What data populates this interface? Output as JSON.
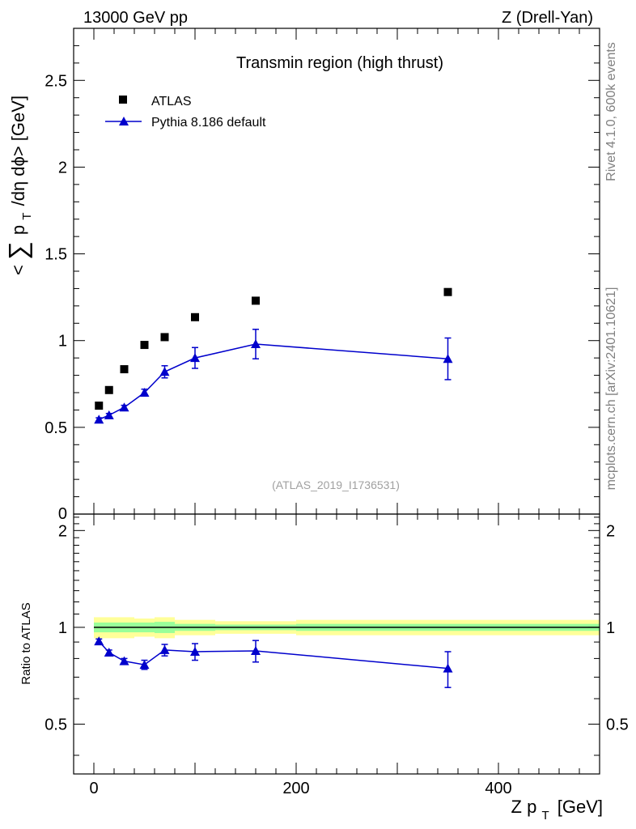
{
  "header": {
    "left": "13000 GeV pp",
    "right": "Z (Drell-Yan)"
  },
  "side": {
    "rivet": "Rivet 4.1.0,  600k events",
    "mcplots": "mcplots.cern.ch [arXiv:2401.10621]"
  },
  "chart_data": {
    "type": "scatter",
    "title": "Transmin region (high thrust)",
    "analysis_tag": "(ATLAS_2019_I1736531)",
    "ylabel_parts": {
      "open": "<",
      "sum": "∑",
      "p": "p",
      "sub": "T",
      "rest": "/dη dϕ> [GeV]"
    },
    "xlabel_parts": {
      "main": "Z p",
      "sub": "T",
      "unit": "[GeV]"
    },
    "xlim": [
      -20,
      500
    ],
    "ylim": [
      0,
      2.8
    ],
    "x_ticks": [
      "0",
      "200",
      "400"
    ],
    "y_ticks": [
      "0.5",
      "1",
      "1.5",
      "2",
      "2.5"
    ],
    "y_tick_bottom": "0",
    "legend": {
      "data_label": "ATLAS",
      "mc_label": "Pythia 8.186 default",
      "position": "top-left"
    },
    "series": [
      {
        "name": "ATLAS",
        "marker": "square",
        "color": "#000000",
        "points": [
          {
            "x": 5,
            "y": 0.625
          },
          {
            "x": 15,
            "y": 0.715
          },
          {
            "x": 30,
            "y": 0.835
          },
          {
            "x": 50,
            "y": 0.975
          },
          {
            "x": 70,
            "y": 1.02
          },
          {
            "x": 100,
            "y": 1.135
          },
          {
            "x": 160,
            "y": 1.23
          },
          {
            "x": 350,
            "y": 1.28
          }
        ]
      },
      {
        "name": "Pythia 8.186 default",
        "marker": "triangle",
        "color": "#0000cc",
        "points": [
          {
            "x": 5,
            "y": 0.545,
            "err": 0.01
          },
          {
            "x": 15,
            "y": 0.57,
            "err": 0.01
          },
          {
            "x": 30,
            "y": 0.615,
            "err": 0.012
          },
          {
            "x": 50,
            "y": 0.7,
            "err": 0.02
          },
          {
            "x": 70,
            "y": 0.82,
            "err": 0.035
          },
          {
            "x": 100,
            "y": 0.9,
            "err": 0.06
          },
          {
            "x": 160,
            "y": 0.98,
            "err": 0.085
          },
          {
            "x": 350,
            "y": 0.895,
            "err": 0.12
          }
        ]
      }
    ],
    "ratio": {
      "ylabel": "Ratio to ATLAS",
      "ylim": [
        0.35,
        2.25
      ],
      "y_ticks": [
        "0.5",
        "1",
        "2"
      ],
      "bands": [
        {
          "x1": 0,
          "x2": 40,
          "stat": 0.035,
          "total": 0.075
        },
        {
          "x1": 40,
          "x2": 60,
          "stat": 0.035,
          "total": 0.065
        },
        {
          "x1": 60,
          "x2": 80,
          "stat": 0.04,
          "total": 0.075
        },
        {
          "x1": 80,
          "x2": 120,
          "stat": 0.025,
          "total": 0.055
        },
        {
          "x1": 120,
          "x2": 200,
          "stat": 0.02,
          "total": 0.045
        },
        {
          "x1": 200,
          "x2": 500,
          "stat": 0.025,
          "total": 0.055
        }
      ],
      "points": [
        {
          "x": 5,
          "y": 0.905,
          "err": 0.015
        },
        {
          "x": 15,
          "y": 0.835,
          "err": 0.015
        },
        {
          "x": 30,
          "y": 0.785,
          "err": 0.015
        },
        {
          "x": 50,
          "y": 0.765,
          "err": 0.025
        },
        {
          "x": 70,
          "y": 0.85,
          "err": 0.035
        },
        {
          "x": 100,
          "y": 0.84,
          "err": 0.05
        },
        {
          "x": 160,
          "y": 0.845,
          "err": 0.065
        },
        {
          "x": 350,
          "y": 0.745,
          "err": 0.095
        }
      ]
    },
    "colors": {
      "total_band": "#ffff99",
      "stat_band": "#99ff99",
      "mc": "#0000cc",
      "data": "#000000",
      "tag": "#a0a0a0"
    }
  }
}
